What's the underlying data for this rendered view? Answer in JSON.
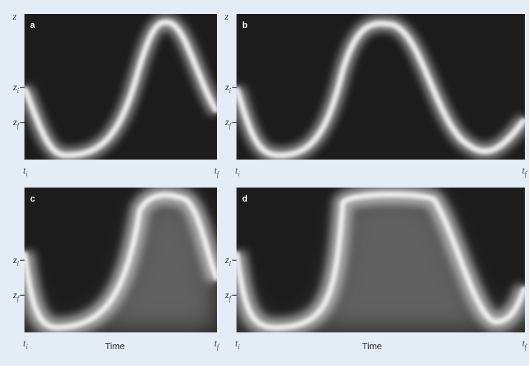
{
  "panels": [
    {
      "label": "a",
      "y_axis_label": "z",
      "y_ticks": [
        {
          "main": "z",
          "sub": "i"
        },
        {
          "main": "z",
          "sub": "f"
        }
      ],
      "x_start": {
        "main": "t",
        "sub": "i"
      },
      "x_end": {
        "main": "t",
        "sub": "f"
      }
    },
    {
      "label": "b",
      "y_axis_label": "z",
      "y_ticks": [
        {
          "main": "z",
          "sub": "i"
        },
        {
          "main": "z",
          "sub": "f"
        }
      ],
      "x_start": {
        "main": "t",
        "sub": "i"
      },
      "x_end": {
        "main": "t",
        "sub": "f"
      }
    },
    {
      "label": "c",
      "y_ticks": [
        {
          "main": "z",
          "sub": "i"
        },
        {
          "main": "z",
          "sub": "f"
        }
      ],
      "x_start": {
        "main": "t",
        "sub": "i"
      },
      "x_end": {
        "main": "t",
        "sub": "f"
      },
      "x_axis_label": "Time"
    },
    {
      "label": "d",
      "y_ticks": [
        {
          "main": "z",
          "sub": "i"
        },
        {
          "main": "z",
          "sub": "f"
        }
      ],
      "x_start": {
        "main": "t",
        "sub": "i"
      },
      "x_end": {
        "main": "t",
        "sub": "f"
      },
      "x_axis_label": "Time"
    }
  ]
}
